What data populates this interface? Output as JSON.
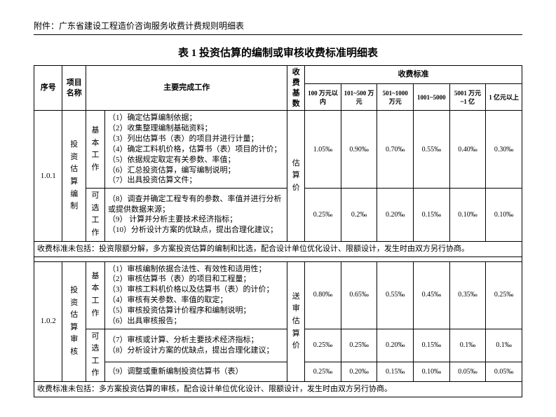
{
  "attachment": "附件：广东省建设工程造价咨询服务收费计费规则明细表",
  "table_title": "表 1  投资估算的编制或审核收费标准明细表",
  "headers": {
    "seq": "序号",
    "name": "项目名称",
    "work": "主要完成工作",
    "base": "收费基数",
    "std": "收费标准"
  },
  "rate_cols": [
    "100 万元以内",
    "101~500 万元",
    "501~1000 万元",
    "1001~5000",
    "5001 万元~1 亿",
    "1 亿元以上"
  ],
  "rows": [
    {
      "seq": "1.0.1",
      "name": "投资估算编制",
      "base": "估算价",
      "groups": [
        {
          "mode": "基本工作",
          "work": "（1）确定估算编制依据；\n（2）收集整理编制基础资料；\n（3）列出估算书（表）的项目并进行计量；\n（4）确定工料机价格，估算书（表）项目的计价；\n（5）依据规定取定有关参数、率值；\n（6）汇总投资估算，编写编制说明；\n（7）出具投资估算文件；",
          "rates": [
            "1.05‰",
            "0.90‰",
            "0.70‰",
            "0.55‰",
            "0.40‰",
            "0.30‰"
          ]
        },
        {
          "mode": "可选工作",
          "work": "（8）调查并确定工程专有的参数、率值并进行分析或提供数据来源；\n（9） 计算并分析主要技术经济指标；\n（10）分析设计方案的优缺点，提出合理化建议；",
          "rates": [
            "0.25‰",
            "0.2‰",
            "0.20‰",
            "0.15‰",
            "0.10‰",
            "0.10‰"
          ]
        }
      ],
      "note": "收费标准未包括：投资限额分解，多方案投资估算的编制和比选，配合设计单位优化设计、限额设计，发生时由双方另行协商。"
    },
    {
      "seq": "1.0.2",
      "name": "投资估算审核",
      "base": "送审估算价",
      "groups": [
        {
          "mode": "基本工作",
          "work": "（1）审核编制依据合法性、有效性和适用性；\n（2）审核估算书（表）的项目和工程量；\n（3）审核工料机价格以及估算书（表）的计价；\n（4）审核有关参数、率值的取定；\n（5）审核投资估算计价程序和编制说明；\n（6）出具审核报告；",
          "rates": [
            "0.80‰",
            "0.65‰",
            "0.55‰",
            "0.45‰",
            "0.35‰",
            "0.25‰"
          ]
        },
        {
          "mode": "可选工作",
          "work": "（7）审核或计算、分析主要技术经济指标；\n（8）分析设计方案的优缺点，提出合理化建议；",
          "rates": [
            "0.25‰",
            "0.25‰",
            "0.20‰",
            "0.15‰",
            "0.1‰",
            "0.1‰"
          ]
        },
        {
          "mode": "",
          "work": "（9）调整或重新编制投资估算书（表）",
          "rates": [
            "0.25‰",
            "0.20‰",
            "0.15‰",
            "0.10‰",
            "0.05‰",
            "0.05‰"
          ]
        }
      ],
      "note": "收费标准未包括：多方案投资估算的审核，配合设计单位优化设计、限额设计，发生时由双方另行协商。"
    }
  ]
}
